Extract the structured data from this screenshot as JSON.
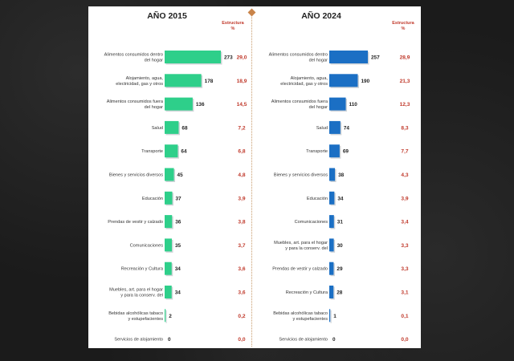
{
  "structure_header": [
    "Estructura",
    "%"
  ],
  "colors": {
    "left_bar": "#2ecf8a",
    "right_bar": "#1b6fc4",
    "percent_text": "#c0392b",
    "background": "#1b1b1b"
  },
  "chart_data": [
    {
      "type": "bar",
      "orientation": "horizontal",
      "title": "AÑO 2015",
      "categories": [
        "Alimentos consumidos dentro del hogar",
        "Alojamiento, agua, electricidad, gas y otros combustibles",
        "Alimentos consumidos fuera del hogar",
        "Salud",
        "Transporte",
        "Bienes y servicios diversos",
        "Educación",
        "Prendas de vestir y calzado",
        "Comunicaciones",
        "Recreación y Cultura",
        "Muebles, art. para el hogar y para la conserv. del hogar",
        "Bebidas alcohólicas tabaco y estupefacientes",
        "Servicios de alojamiento"
      ],
      "values": [
        273,
        178,
        136,
        68,
        64,
        45,
        37,
        36,
        35,
        34,
        34,
        2,
        0
      ],
      "percent_labels": [
        "29,0",
        "18,9",
        "14,5",
        "7,2",
        "6,8",
        "4,8",
        "3,9",
        "3,8",
        "3,7",
        "3,6",
        "3,6",
        "0,2",
        "0,0"
      ],
      "xlim": [
        0,
        273
      ]
    },
    {
      "type": "bar",
      "orientation": "horizontal",
      "title": "AÑO 2024",
      "categories": [
        "Alimentos consumidos dentro del hogar",
        "Alojamiento, agua, electricidad, gas y otros combustibles",
        "Alimentos consumidos fuera del hogar",
        "Salud",
        "Transporte",
        "Bienes y servicios diversos",
        "Educación",
        "Comunicaciones",
        "Muebles, art. para el hogar y para la conserv. del hogar",
        "Prendas de vestir y calzado",
        "Recreación y Cultura",
        "Bebidas alcohólicas tabaco y estupefacientes",
        "Servicios de alojamiento"
      ],
      "values": [
        257,
        190,
        110,
        74,
        69,
        38,
        34,
        31,
        30,
        29,
        28,
        1,
        0
      ],
      "percent_labels": [
        "28,9",
        "21,3",
        "12,3",
        "8,3",
        "7,7",
        "4,3",
        "3,9",
        "3,4",
        "3,3",
        "3,3",
        "3,1",
        "0,1",
        "0,0"
      ],
      "xlim": [
        0,
        257
      ]
    }
  ]
}
